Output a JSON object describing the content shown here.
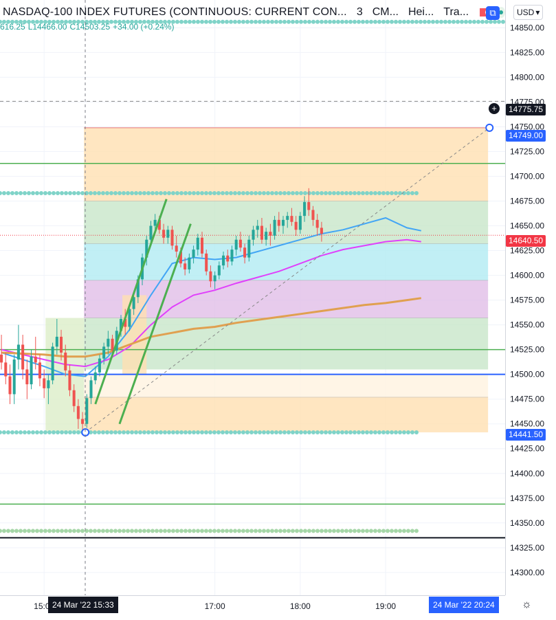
{
  "header": {
    "title": "NASDAQ-100 INDEX FUTURES (CONTINUOUS: CURRENT CON...",
    "interval": "3",
    "exchange": "CM...",
    "candle_type": "Hei...",
    "extra": "Tra...",
    "currency": "USD"
  },
  "ohlc": {
    "high": "616.25",
    "low": "L14466.00",
    "close": "C14503.25",
    "change": "+34.00 (+0.24%)"
  },
  "badges": {
    "crosshair_price": "14775.75",
    "target_price": "14749.00",
    "last_price": "14640.50",
    "low_price": "14441.50",
    "crosshair_date": "24 Mar '22  15:33",
    "end_date": "24 Mar '22  20:24"
  },
  "colors": {
    "up": "#26a69a",
    "down": "#ef5350",
    "blue_line": "#2962ff",
    "green_line": "#4caf50",
    "ema_fast": "#42a5f5",
    "ema_mid": "#e040fb",
    "ema_slow": "#e0a050",
    "dotted_level": "#7fd3c8",
    "last_price": "#f23645"
  },
  "chart_data": {
    "type": "candlestick",
    "y_ticks": [
      14850,
      14825,
      14800,
      14775,
      14750,
      14725,
      14700,
      14675,
      14650,
      14625,
      14600,
      14575,
      14550,
      14525,
      14500,
      14475,
      14450,
      14425,
      14400,
      14375,
      14350,
      14325,
      14300
    ],
    "y_tick_labels": [
      "14850.00",
      "14825.00",
      "14800.00",
      "14775.00",
      "14750.00",
      "14725.00",
      "14700.00",
      "14675.00",
      "14650.00",
      "14625.00",
      "14600.00",
      "14575.00",
      "14550.00",
      "14525.00",
      "14500.00",
      "14475.00",
      "14450.00",
      "14425.00",
      "14400.00",
      "14375.00",
      "14350.00",
      "14325.00",
      "14300.00"
    ],
    "ylim": [
      14277,
      14878
    ],
    "x_labels": [
      "15:00",
      "17:00",
      "18:00",
      "19:00"
    ],
    "x_label_minutes": [
      900,
      1020,
      1080,
      1140
    ],
    "xlim_minutes": [
      869,
      1224
    ],
    "levels": [
      {
        "price": 14856,
        "style": "dots",
        "color": "#7fd3c8"
      },
      {
        "price": 14775.75,
        "style": "dashed",
        "color": "#888888"
      },
      {
        "price": 14713,
        "style": "solid",
        "color": "#4caf50"
      },
      {
        "price": 14683,
        "style": "dots",
        "color": "#7fd3c8",
        "x_end": 1162
      },
      {
        "price": 14640.5,
        "style": "dotted",
        "color": "#f23645"
      },
      {
        "price": 14525,
        "style": "solid",
        "color": "#4caf50"
      },
      {
        "price": 14500,
        "style": "solid",
        "color": "#2962ff"
      },
      {
        "price": 14441.5,
        "style": "dots",
        "color": "#7fd3c8",
        "x_end": 1162
      },
      {
        "price": 14369,
        "style": "solid",
        "color": "#4caf50"
      },
      {
        "price": 14342,
        "style": "dots",
        "color": "#a5d6a7",
        "x_end": 1162
      },
      {
        "price": 14335,
        "style": "solid",
        "color": "#131722"
      }
    ],
    "zones": [
      {
        "x0": 928,
        "x1": 1212,
        "y0": 14675,
        "y1": 14749,
        "color": "#ffe0b2"
      },
      {
        "x0": 928,
        "x1": 1212,
        "y0": 14632,
        "y1": 14675,
        "color": "#c8e6c9"
      },
      {
        "x0": 928,
        "x1": 1212,
        "y0": 14595,
        "y1": 14632,
        "color": "#b2ebf2"
      },
      {
        "x0": 928,
        "x1": 1212,
        "y0": 14557,
        "y1": 14595,
        "color": "#e1bee7"
      },
      {
        "x0": 928,
        "x1": 1212,
        "y0": 14505,
        "y1": 14557,
        "color": "#c8e6c9"
      },
      {
        "x0": 928,
        "x1": 1212,
        "y0": 14477,
        "y1": 14500,
        "color": "#fff3e0"
      },
      {
        "x0": 928,
        "x1": 1212,
        "y0": 14441.5,
        "y1": 14477,
        "color": "#ffe0b2"
      },
      {
        "x0": 901,
        "x1": 928,
        "y0": 14441.5,
        "y1": 14557,
        "color": "#dcedc8"
      },
      {
        "x0": 955,
        "x1": 972,
        "y0": 14500,
        "y1": 14580,
        "color": "#ffe0b2"
      }
    ],
    "trendlines": [
      {
        "points": [
          [
            929,
            14441.5
          ],
          [
            1213,
            14749
          ]
        ],
        "color": "#888888",
        "style": "dashed"
      },
      {
        "points": [
          [
            936,
            14470
          ],
          [
            986,
            14677
          ]
        ],
        "color": "#4caf50",
        "style": "solid"
      },
      {
        "points": [
          [
            953,
            14450
          ],
          [
            1003,
            14652
          ]
        ],
        "color": "#4caf50",
        "style": "solid"
      }
    ],
    "anchors": [
      {
        "x": 929,
        "y": 14441.5
      },
      {
        "x": 1213,
        "y": 14749
      }
    ],
    "candles_start_minute": 870,
    "candle_step_minutes": 3,
    "candles": [
      [
        14520,
        14540,
        14505,
        14512
      ],
      [
        14512,
        14522,
        14490,
        14498
      ],
      [
        14498,
        14510,
        14470,
        14480
      ],
      [
        14480,
        14520,
        14470,
        14515
      ],
      [
        14515,
        14550,
        14505,
        14530
      ],
      [
        14530,
        14540,
        14495,
        14505
      ],
      [
        14505,
        14515,
        14475,
        14490
      ],
      [
        14490,
        14525,
        14485,
        14518
      ],
      [
        14518,
        14538,
        14505,
        14512
      ],
      [
        14512,
        14520,
        14488,
        14496
      ],
      [
        14496,
        14505,
        14476,
        14486
      ],
      [
        14486,
        14500,
        14470,
        14494
      ],
      [
        14494,
        14532,
        14490,
        14528
      ],
      [
        14528,
        14556,
        14520,
        14538
      ],
      [
        14538,
        14545,
        14514,
        14522
      ],
      [
        14522,
        14530,
        14498,
        14504
      ],
      [
        14504,
        14510,
        14478,
        14484
      ],
      [
        14484,
        14490,
        14462,
        14468
      ],
      [
        14468,
        14475,
        14445,
        14455
      ],
      [
        14455,
        14462,
        14440,
        14450
      ],
      [
        14450,
        14480,
        14446,
        14476
      ],
      [
        14476,
        14498,
        14470,
        14494
      ],
      [
        14494,
        14508,
        14490,
        14502
      ],
      [
        14502,
        14520,
        14498,
        14516
      ],
      [
        14516,
        14532,
        14510,
        14528
      ],
      [
        14528,
        14544,
        14520,
        14536
      ],
      [
        14536,
        14540,
        14518,
        14524
      ],
      [
        14524,
        14548,
        14520,
        14544
      ],
      [
        14544,
        14560,
        14538,
        14556
      ],
      [
        14556,
        14566,
        14540,
        14548
      ],
      [
        14548,
        14570,
        14544,
        14566
      ],
      [
        14566,
        14584,
        14560,
        14578
      ],
      [
        14578,
        14600,
        14572,
        14596
      ],
      [
        14596,
        14622,
        14590,
        14618
      ],
      [
        14618,
        14640,
        14610,
        14636
      ],
      [
        14636,
        14655,
        14630,
        14650
      ],
      [
        14650,
        14662,
        14644,
        14656
      ],
      [
        14656,
        14660,
        14642,
        14646
      ],
      [
        14646,
        14652,
        14632,
        14638
      ],
      [
        14638,
        14650,
        14632,
        14646
      ],
      [
        14646,
        14650,
        14626,
        14630
      ],
      [
        14630,
        14640,
        14618,
        14624
      ],
      [
        14624,
        14628,
        14608,
        14612
      ],
      [
        14612,
        14618,
        14600,
        14606
      ],
      [
        14606,
        14622,
        14602,
        14618
      ],
      [
        14618,
        14630,
        14612,
        14626
      ],
      [
        14626,
        14642,
        14620,
        14638
      ],
      [
        14638,
        14644,
        14618,
        14622
      ],
      [
        14622,
        14626,
        14600,
        14604
      ],
      [
        14604,
        14610,
        14588,
        14594
      ],
      [
        14594,
        14604,
        14586,
        14600
      ],
      [
        14600,
        14614,
        14596,
        14610
      ],
      [
        14610,
        14624,
        14606,
        14620
      ],
      [
        14620,
        14626,
        14608,
        14614
      ],
      [
        14614,
        14630,
        14610,
        14626
      ],
      [
        14626,
        14640,
        14620,
        14636
      ],
      [
        14636,
        14644,
        14624,
        14628
      ],
      [
        14628,
        14632,
        14612,
        14618
      ],
      [
        14618,
        14640,
        14614,
        14636
      ],
      [
        14636,
        14650,
        14630,
        14646
      ],
      [
        14646,
        14656,
        14638,
        14650
      ],
      [
        14650,
        14658,
        14632,
        14636
      ],
      [
        14636,
        14648,
        14630,
        14644
      ],
      [
        14644,
        14652,
        14630,
        14640
      ],
      [
        14640,
        14660,
        14636,
        14656
      ],
      [
        14656,
        14664,
        14644,
        14650
      ],
      [
        14650,
        14660,
        14642,
        14656
      ],
      [
        14656,
        14664,
        14648,
        14660
      ],
      [
        14660,
        14668,
        14650,
        14654
      ],
      [
        14654,
        14660,
        14640,
        14646
      ],
      [
        14646,
        14664,
        14642,
        14660
      ],
      [
        14660,
        14680,
        14654,
        14674
      ],
      [
        14674,
        14688,
        14660,
        14666
      ],
      [
        14666,
        14670,
        14650,
        14656
      ],
      [
        14656,
        14662,
        14640,
        14648
      ],
      [
        14648,
        14654,
        14634,
        14642
      ]
    ],
    "ma_series": [
      {
        "color": "#42a5f5",
        "points": [
          [
            870,
            14522
          ],
          [
            900,
            14508
          ],
          [
            915,
            14500
          ],
          [
            929,
            14498
          ],
          [
            945,
            14518
          ],
          [
            960,
            14545
          ],
          [
            975,
            14580
          ],
          [
            990,
            14612
          ],
          [
            1005,
            14618
          ],
          [
            1020,
            14616
          ],
          [
            1035,
            14618
          ],
          [
            1050,
            14624
          ],
          [
            1065,
            14630
          ],
          [
            1080,
            14636
          ],
          [
            1095,
            14642
          ],
          [
            1110,
            14646
          ],
          [
            1125,
            14652
          ],
          [
            1140,
            14658
          ],
          [
            1155,
            14648
          ],
          [
            1165,
            14645
          ]
        ]
      },
      {
        "color": "#e040fb",
        "points": [
          [
            870,
            14525
          ],
          [
            900,
            14515
          ],
          [
            915,
            14510
          ],
          [
            929,
            14508
          ],
          [
            945,
            14515
          ],
          [
            960,
            14528
          ],
          [
            975,
            14550
          ],
          [
            990,
            14568
          ],
          [
            1005,
            14580
          ],
          [
            1020,
            14585
          ],
          [
            1035,
            14592
          ],
          [
            1050,
            14598
          ],
          [
            1065,
            14604
          ],
          [
            1080,
            14612
          ],
          [
            1095,
            14620
          ],
          [
            1110,
            14626
          ],
          [
            1125,
            14630
          ],
          [
            1140,
            14634
          ],
          [
            1155,
            14636
          ],
          [
            1165,
            14634
          ]
        ]
      },
      {
        "color": "#e0a050",
        "points": [
          [
            870,
            14522
          ],
          [
            900,
            14520
          ],
          [
            915,
            14518
          ],
          [
            929,
            14518
          ],
          [
            945,
            14522
          ],
          [
            960,
            14530
          ],
          [
            975,
            14538
          ],
          [
            990,
            14542
          ],
          [
            1005,
            14546
          ],
          [
            1020,
            14548
          ],
          [
            1035,
            14552
          ],
          [
            1050,
            14555
          ],
          [
            1065,
            14558
          ],
          [
            1080,
            14561
          ],
          [
            1095,
            14564
          ],
          [
            1110,
            14567
          ],
          [
            1125,
            14570
          ],
          [
            1140,
            14572
          ],
          [
            1155,
            14575
          ],
          [
            1165,
            14577
          ]
        ]
      }
    ]
  }
}
